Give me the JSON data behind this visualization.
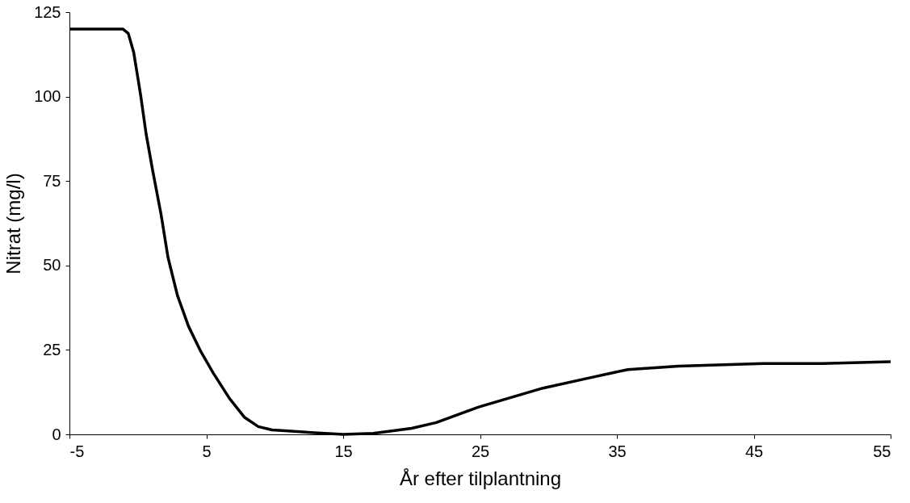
{
  "chart_data": {
    "type": "line",
    "xlabel": "År efter tilplantning",
    "ylabel": "Nitrat (mg/l)",
    "xlim": [
      -5,
      55
    ],
    "xticks": [
      -5,
      5,
      15,
      25,
      35,
      45,
      55
    ],
    "ylim": [
      0,
      125
    ],
    "yticks": [
      0,
      25,
      50,
      75,
      100,
      125
    ],
    "grid": false,
    "marker": "none",
    "line_style": "solid",
    "series": [
      {
        "color": "#000000",
        "x": [
          -5,
          -1.1,
          -0.7,
          -0.3,
          0.2,
          0.6,
          1.1,
          1.7,
          2.2,
          2.9,
          3.7,
          4.6,
          5.5,
          6.7,
          7.8,
          8.8,
          9.8,
          11,
          12.9,
          15,
          17.2,
          20,
          21.8,
          24.9,
          27.4,
          29.6,
          33.3,
          35.8,
          39.5,
          45.7,
          50,
          55
        ],
        "values": [
          120,
          120,
          118.7,
          113,
          100.5,
          89,
          77.7,
          65,
          52.4,
          41,
          32,
          24.5,
          18.2,
          10.6,
          5,
          2.3,
          1.3,
          1,
          0.5,
          0,
          0.3,
          1.8,
          3.5,
          8.1,
          11.1,
          13.7,
          17,
          19.2,
          20.2,
          21,
          21,
          21.5
        ]
      }
    ]
  }
}
